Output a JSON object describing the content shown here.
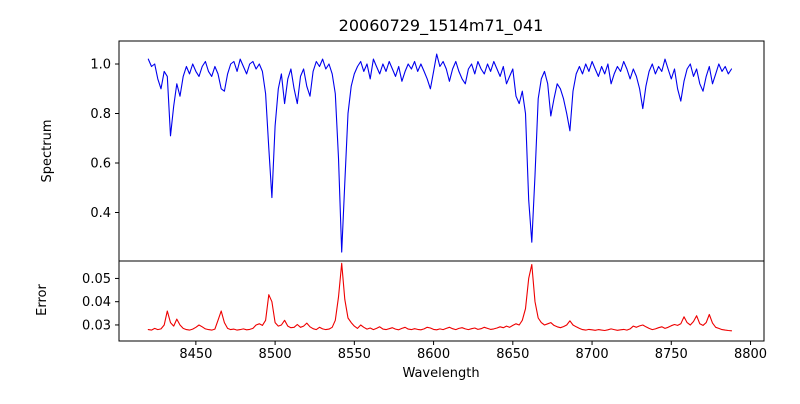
{
  "chart_data": {
    "type": "line",
    "title": "20060729_1514m71_041",
    "xlabel": "Wavelength",
    "xlim": [
      8401.5,
      8808.5
    ],
    "x_ticks": [
      8450,
      8500,
      8550,
      8600,
      8650,
      8700,
      8750,
      8800
    ],
    "x_tick_labels": [
      "8450",
      "8500",
      "8550",
      "8600",
      "8650",
      "8700",
      "8750",
      "8800"
    ],
    "x_start": 8420,
    "x_step": 2,
    "grid": false,
    "legend": "none",
    "panels": [
      {
        "name": "spectrum",
        "ylabel": "Spectrum",
        "color": "#0000ee",
        "ylim": [
          0.204,
          1.093
        ],
        "y_ticks": [
          0.4,
          0.6,
          0.8,
          1.0
        ],
        "y_tick_labels": [
          "0.4",
          "0.6",
          "0.8",
          "1.0"
        ],
        "notable_features": "absorption lines near 8434 (0.71), 8498 (0.46), 8542 (0.24), 8662 (0.28), 8686 (0.73)",
        "values": [
          1.02,
          0.99,
          1.0,
          0.94,
          0.9,
          0.97,
          0.95,
          0.71,
          0.83,
          0.92,
          0.87,
          0.95,
          0.99,
          0.96,
          1.0,
          0.97,
          0.95,
          0.99,
          1.01,
          0.97,
          0.95,
          0.99,
          0.96,
          0.9,
          0.89,
          0.96,
          1.0,
          1.01,
          0.97,
          1.02,
          0.99,
          0.96,
          1.0,
          1.01,
          0.98,
          1.0,
          0.97,
          0.88,
          0.66,
          0.46,
          0.75,
          0.9,
          0.96,
          0.84,
          0.94,
          0.98,
          0.9,
          0.84,
          0.95,
          0.98,
          0.91,
          0.87,
          0.97,
          1.01,
          0.99,
          1.02,
          0.98,
          1.0,
          0.96,
          0.88,
          0.62,
          0.24,
          0.52,
          0.8,
          0.91,
          0.96,
          0.99,
          1.01,
          0.97,
          1.0,
          0.94,
          1.02,
          0.99,
          0.96,
          1.0,
          0.97,
          1.01,
          0.98,
          0.95,
          0.99,
          0.93,
          0.97,
          1.0,
          0.98,
          1.01,
          0.97,
          1.0,
          0.97,
          0.94,
          0.9,
          0.97,
          1.04,
          0.99,
          1.01,
          0.98,
          0.93,
          0.98,
          1.01,
          0.97,
          0.94,
          0.92,
          0.98,
          1.0,
          0.96,
          1.01,
          0.98,
          0.96,
          1.0,
          0.97,
          1.01,
          0.98,
          0.95,
          0.99,
          0.92,
          0.95,
          0.98,
          0.87,
          0.84,
          0.89,
          0.8,
          0.45,
          0.28,
          0.55,
          0.86,
          0.94,
          0.97,
          0.92,
          0.79,
          0.86,
          0.92,
          0.9,
          0.86,
          0.8,
          0.73,
          0.89,
          0.96,
          0.99,
          0.96,
          1.0,
          0.97,
          1.01,
          0.98,
          0.95,
          0.99,
          0.96,
          1.0,
          0.92,
          0.96,
          0.99,
          0.97,
          1.01,
          0.98,
          0.94,
          0.98,
          0.95,
          0.9,
          0.82,
          0.91,
          0.97,
          1.0,
          0.96,
          0.99,
          0.97,
          1.02,
          0.98,
          0.94,
          0.98,
          0.9,
          0.85,
          0.93,
          0.98,
          1.0,
          0.95,
          0.98,
          0.92,
          0.89,
          0.95,
          0.99,
          0.92,
          0.96,
          1.0,
          0.97,
          0.99,
          0.96,
          0.98
        ]
      },
      {
        "name": "error",
        "ylabel": "Error",
        "color": "#ee0000",
        "ylim": [
          0.0231,
          0.0575
        ],
        "y_ticks": [
          0.03,
          0.04,
          0.05
        ],
        "y_tick_labels": [
          "0.03",
          "0.04",
          "0.05"
        ],
        "notable_features": "baseline ~0.028 with peaks near 8432 (0.036), 8466 (0.036), 8497 (0.043), 8542 (0.0565), 8661 (0.056), 8774 (0.0345)",
        "values": [
          0.028,
          0.0278,
          0.0285,
          0.028,
          0.0283,
          0.03,
          0.036,
          0.031,
          0.0295,
          0.0325,
          0.03,
          0.0285,
          0.028,
          0.0278,
          0.0282,
          0.029,
          0.03,
          0.0292,
          0.0283,
          0.028,
          0.0278,
          0.0282,
          0.032,
          0.036,
          0.031,
          0.0285,
          0.028,
          0.0282,
          0.0278,
          0.028,
          0.0283,
          0.0279,
          0.0281,
          0.0285,
          0.03,
          0.0305,
          0.0298,
          0.032,
          0.043,
          0.04,
          0.031,
          0.0295,
          0.03,
          0.032,
          0.0295,
          0.0288,
          0.029,
          0.0302,
          0.029,
          0.0295,
          0.0308,
          0.0292,
          0.0284,
          0.028,
          0.029,
          0.0283,
          0.028,
          0.0282,
          0.029,
          0.032,
          0.042,
          0.0565,
          0.041,
          0.033,
          0.031,
          0.0295,
          0.0285,
          0.03,
          0.029,
          0.0282,
          0.0287,
          0.028,
          0.0285,
          0.0292,
          0.0282,
          0.028,
          0.0284,
          0.0288,
          0.0282,
          0.0279,
          0.0285,
          0.029,
          0.0282,
          0.028,
          0.0284,
          0.0281,
          0.0279,
          0.0283,
          0.029,
          0.0287,
          0.0281,
          0.0279,
          0.0283,
          0.028,
          0.0285,
          0.029,
          0.0284,
          0.028,
          0.0285,
          0.0288,
          0.0283,
          0.028,
          0.0284,
          0.0287,
          0.0281,
          0.0284,
          0.029,
          0.0285,
          0.0281,
          0.0283,
          0.0287,
          0.0292,
          0.0288,
          0.0295,
          0.029,
          0.0298,
          0.0305,
          0.03,
          0.032,
          0.037,
          0.05,
          0.056,
          0.04,
          0.033,
          0.031,
          0.03,
          0.0305,
          0.031,
          0.0298,
          0.0292,
          0.0288,
          0.0293,
          0.03,
          0.0318,
          0.03,
          0.0292,
          0.0285,
          0.028,
          0.0278,
          0.0281,
          0.0279,
          0.0277,
          0.028,
          0.0278,
          0.0276,
          0.0279,
          0.0283,
          0.028,
          0.0277,
          0.0279,
          0.0281,
          0.0278,
          0.0283,
          0.0295,
          0.029,
          0.0296,
          0.03,
          0.0292,
          0.0285,
          0.028,
          0.0283,
          0.0288,
          0.0292,
          0.0285,
          0.029,
          0.0297,
          0.0302,
          0.0298,
          0.0305,
          0.0335,
          0.031,
          0.03,
          0.0315,
          0.034,
          0.0305,
          0.0298,
          0.031,
          0.0345,
          0.0308,
          0.029,
          0.0285,
          0.028,
          0.0278,
          0.0276,
          0.0275
        ]
      }
    ]
  }
}
